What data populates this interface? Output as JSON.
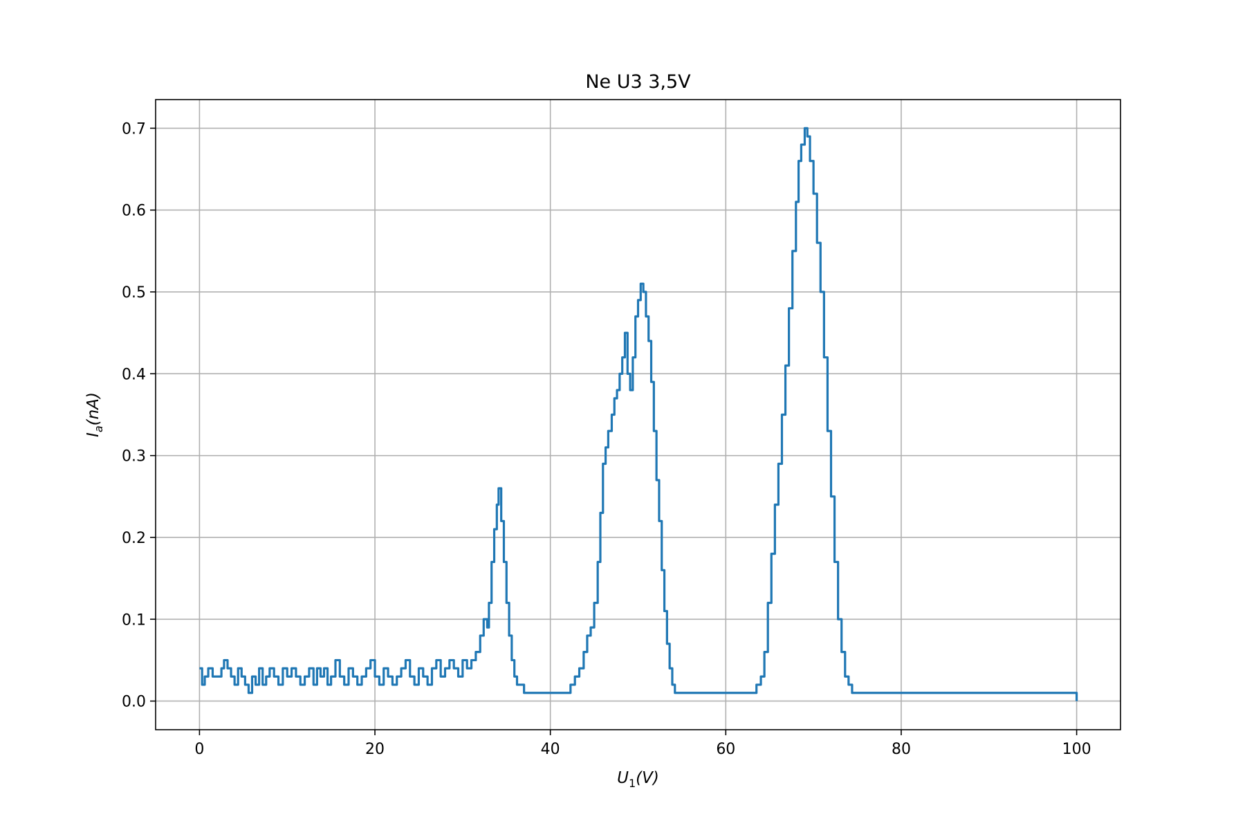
{
  "chart_data": {
    "type": "line",
    "title": "Ne U3 3,5V",
    "xlabel": {
      "base": "U",
      "sub": "1",
      "unit": "(V)"
    },
    "ylabel": {
      "base": "I",
      "sub": "a",
      "unit": "(nA)"
    },
    "xlim": [
      -5,
      105
    ],
    "ylim": [
      -0.035,
      0.735
    ],
    "xticks": [
      0,
      20,
      40,
      60,
      80,
      100
    ],
    "yticks": [
      0.0,
      0.1,
      0.2,
      0.3,
      0.4,
      0.5,
      0.6,
      0.7
    ],
    "grid": true,
    "line_color": "#1f77b4",
    "series": [
      {
        "x": [
          0,
          0.3,
          0.6,
          1.0,
          1.5,
          2.0,
          2.5,
          2.8,
          3.2,
          3.6,
          4.0,
          4.4,
          4.8,
          5.2,
          5.6,
          6.0,
          6.4,
          6.8,
          7.2,
          7.6,
          8.0,
          8.5,
          9.0,
          9.5,
          10.0,
          10.5,
          11.0,
          11.5,
          12.0,
          12.5,
          13.0,
          13.4,
          13.8,
          14.2,
          14.6,
          15.0,
          15.5,
          16.0,
          16.5,
          17.0,
          17.5,
          18.0,
          18.5,
          19.0,
          19.5,
          20.0,
          20.5,
          21.0,
          21.5,
          22.0,
          22.5,
          23.0,
          23.5,
          24.0,
          24.5,
          25.0,
          25.5,
          26.0,
          26.5,
          27.0,
          27.5,
          28.0,
          28.5,
          29.0,
          29.5,
          30.0,
          30.5,
          31.0,
          31.5,
          32.0,
          32.4,
          32.8,
          33.0,
          33.3,
          33.6,
          33.9,
          34.1,
          34.4,
          34.7,
          35.0,
          35.3,
          35.6,
          35.9,
          36.2,
          36.6,
          37.0,
          37.3,
          38.0,
          40.0,
          42.0,
          42.3,
          42.8,
          43.3,
          43.8,
          44.2,
          44.6,
          45.0,
          45.4,
          45.7,
          46.0,
          46.3,
          46.6,
          47.0,
          47.3,
          47.6,
          47.9,
          48.2,
          48.5,
          48.8,
          49.1,
          49.4,
          49.7,
          50.0,
          50.3,
          50.6,
          50.9,
          51.2,
          51.5,
          51.8,
          52.1,
          52.4,
          52.7,
          53.0,
          53.3,
          53.6,
          53.9,
          54.2,
          54.5,
          54.8,
          55.1,
          55.4,
          55.7,
          56.0,
          58.0,
          60.0,
          62.0,
          62.5,
          63.0,
          63.5,
          64.0,
          64.4,
          64.8,
          65.2,
          65.6,
          66.0,
          66.4,
          66.8,
          67.2,
          67.6,
          68.0,
          68.3,
          68.6,
          69.0,
          69.3,
          69.6,
          70.0,
          70.4,
          70.8,
          71.2,
          71.6,
          72.0,
          72.4,
          72.8,
          73.2,
          73.6,
          74.0,
          74.4,
          76.0,
          80.0,
          90.0,
          99.8,
          100.0
        ],
        "y": [
          0.04,
          0.02,
          0.03,
          0.04,
          0.03,
          0.03,
          0.04,
          0.05,
          0.04,
          0.03,
          0.02,
          0.04,
          0.03,
          0.02,
          0.01,
          0.03,
          0.02,
          0.04,
          0.02,
          0.03,
          0.04,
          0.03,
          0.02,
          0.04,
          0.03,
          0.04,
          0.03,
          0.02,
          0.03,
          0.04,
          0.02,
          0.04,
          0.03,
          0.04,
          0.02,
          0.03,
          0.05,
          0.03,
          0.02,
          0.04,
          0.03,
          0.02,
          0.03,
          0.04,
          0.05,
          0.03,
          0.02,
          0.04,
          0.03,
          0.02,
          0.03,
          0.04,
          0.05,
          0.03,
          0.02,
          0.04,
          0.03,
          0.02,
          0.04,
          0.05,
          0.03,
          0.04,
          0.05,
          0.04,
          0.03,
          0.05,
          0.04,
          0.05,
          0.06,
          0.08,
          0.1,
          0.09,
          0.12,
          0.17,
          0.21,
          0.24,
          0.26,
          0.22,
          0.17,
          0.12,
          0.08,
          0.05,
          0.03,
          0.02,
          0.02,
          0.01,
          0.01,
          0.01,
          0.01,
          0.01,
          0.02,
          0.03,
          0.04,
          0.06,
          0.08,
          0.09,
          0.12,
          0.17,
          0.23,
          0.29,
          0.31,
          0.33,
          0.35,
          0.37,
          0.38,
          0.4,
          0.42,
          0.45,
          0.4,
          0.38,
          0.42,
          0.47,
          0.49,
          0.51,
          0.5,
          0.47,
          0.44,
          0.39,
          0.33,
          0.27,
          0.22,
          0.16,
          0.11,
          0.07,
          0.04,
          0.02,
          0.01,
          0.01,
          0.01,
          0.01,
          0.01,
          0.01,
          0.01,
          0.01,
          0.01,
          0.01,
          0.01,
          0.01,
          0.02,
          0.03,
          0.06,
          0.12,
          0.18,
          0.24,
          0.29,
          0.35,
          0.41,
          0.48,
          0.55,
          0.61,
          0.66,
          0.68,
          0.7,
          0.69,
          0.66,
          0.62,
          0.56,
          0.5,
          0.42,
          0.33,
          0.25,
          0.17,
          0.1,
          0.06,
          0.03,
          0.02,
          0.01,
          0.01,
          0.01,
          0.01,
          0.01,
          0.0
        ]
      }
    ]
  }
}
